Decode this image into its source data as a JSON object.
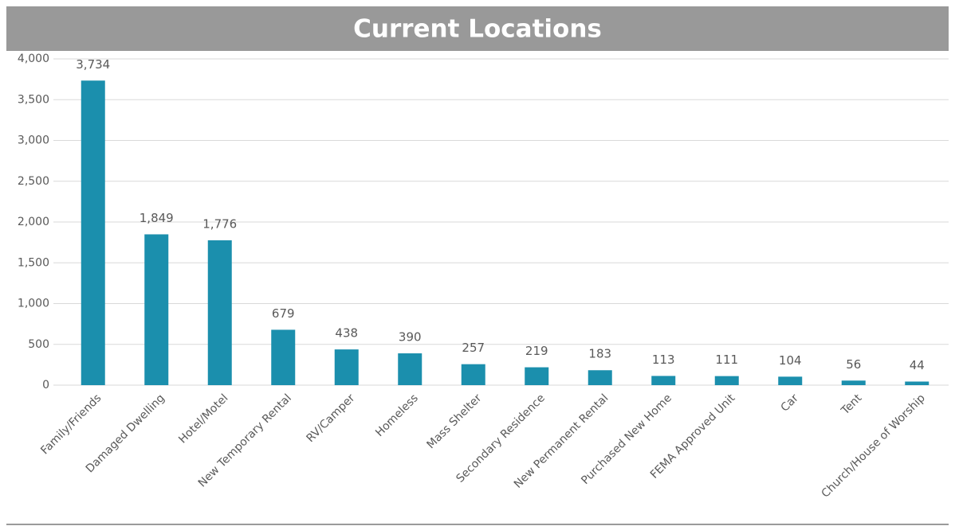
{
  "chart_data": {
    "type": "bar",
    "title": "Current Locations",
    "categories": [
      "Family/Friends",
      "Damaged Dwelling",
      "Hotel/Motel",
      "New Temporary Rental",
      "RV/Camper",
      "Homeless",
      "Mass Shelter",
      "Secondary Residence",
      "New Permanent Rental",
      "Purchased New Home",
      "FEMA Approved Unit",
      "Car",
      "Tent",
      "Church/House of Worship"
    ],
    "values": [
      3734,
      1849,
      1776,
      679,
      438,
      390,
      257,
      219,
      183,
      113,
      111,
      104,
      56,
      44
    ],
    "value_labels": [
      "3,734",
      "1,849",
      "1,776",
      "679",
      "438",
      "390",
      "257",
      "219",
      "183",
      "113",
      "111",
      "104",
      "56",
      "44"
    ],
    "color": "#1b8fad",
    "ylim": [
      0,
      4000
    ],
    "yticks": [
      0,
      500,
      {
        "value": 1000,
        "label": "1,000"
      },
      {
        "value": 1500,
        "label": "1,500"
      },
      {
        "value": 2000,
        "label": "2,000"
      },
      {
        "value": 2500,
        "label": "2,500"
      },
      {
        "value": 3000,
        "label": "3,000"
      },
      {
        "value": 3500,
        "label": "3,500"
      },
      {
        "value": 4000,
        "label": "4,000"
      }
    ],
    "grid": true
  }
}
